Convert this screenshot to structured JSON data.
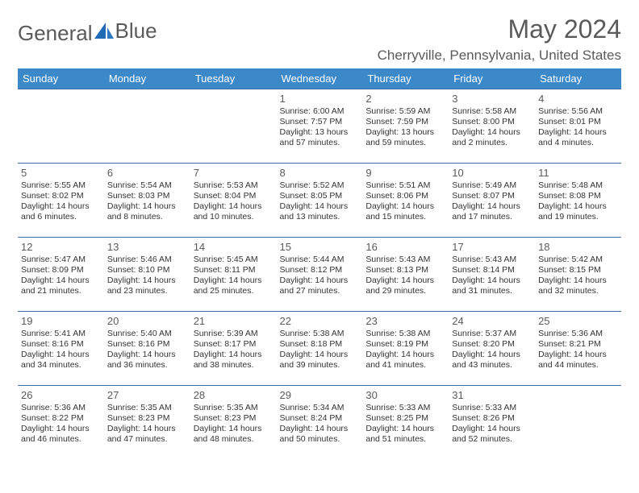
{
  "logo": {
    "text_a": "General",
    "text_b": "Blue"
  },
  "title": "May 2024",
  "location": "Cherryville, Pennsylvania, United States",
  "colors": {
    "header_bg": "#3b89c9",
    "header_text": "#ffffff",
    "row_border": "#3b6ea0",
    "text_muted": "#5a5a5a",
    "text_body": "#333333",
    "logo_accent": "#1f6bb5"
  },
  "weekdays": [
    "Sunday",
    "Monday",
    "Tuesday",
    "Wednesday",
    "Thursday",
    "Friday",
    "Saturday"
  ],
  "weeks": [
    [
      null,
      null,
      null,
      {
        "n": "1",
        "sr": "Sunrise: 6:00 AM",
        "ss": "Sunset: 7:57 PM",
        "d1": "Daylight: 13 hours",
        "d2": "and 57 minutes."
      },
      {
        "n": "2",
        "sr": "Sunrise: 5:59 AM",
        "ss": "Sunset: 7:59 PM",
        "d1": "Daylight: 13 hours",
        "d2": "and 59 minutes."
      },
      {
        "n": "3",
        "sr": "Sunrise: 5:58 AM",
        "ss": "Sunset: 8:00 PM",
        "d1": "Daylight: 14 hours",
        "d2": "and 2 minutes."
      },
      {
        "n": "4",
        "sr": "Sunrise: 5:56 AM",
        "ss": "Sunset: 8:01 PM",
        "d1": "Daylight: 14 hours",
        "d2": "and 4 minutes."
      }
    ],
    [
      {
        "n": "5",
        "sr": "Sunrise: 5:55 AM",
        "ss": "Sunset: 8:02 PM",
        "d1": "Daylight: 14 hours",
        "d2": "and 6 minutes."
      },
      {
        "n": "6",
        "sr": "Sunrise: 5:54 AM",
        "ss": "Sunset: 8:03 PM",
        "d1": "Daylight: 14 hours",
        "d2": "and 8 minutes."
      },
      {
        "n": "7",
        "sr": "Sunrise: 5:53 AM",
        "ss": "Sunset: 8:04 PM",
        "d1": "Daylight: 14 hours",
        "d2": "and 10 minutes."
      },
      {
        "n": "8",
        "sr": "Sunrise: 5:52 AM",
        "ss": "Sunset: 8:05 PM",
        "d1": "Daylight: 14 hours",
        "d2": "and 13 minutes."
      },
      {
        "n": "9",
        "sr": "Sunrise: 5:51 AM",
        "ss": "Sunset: 8:06 PM",
        "d1": "Daylight: 14 hours",
        "d2": "and 15 minutes."
      },
      {
        "n": "10",
        "sr": "Sunrise: 5:49 AM",
        "ss": "Sunset: 8:07 PM",
        "d1": "Daylight: 14 hours",
        "d2": "and 17 minutes."
      },
      {
        "n": "11",
        "sr": "Sunrise: 5:48 AM",
        "ss": "Sunset: 8:08 PM",
        "d1": "Daylight: 14 hours",
        "d2": "and 19 minutes."
      }
    ],
    [
      {
        "n": "12",
        "sr": "Sunrise: 5:47 AM",
        "ss": "Sunset: 8:09 PM",
        "d1": "Daylight: 14 hours",
        "d2": "and 21 minutes."
      },
      {
        "n": "13",
        "sr": "Sunrise: 5:46 AM",
        "ss": "Sunset: 8:10 PM",
        "d1": "Daylight: 14 hours",
        "d2": "and 23 minutes."
      },
      {
        "n": "14",
        "sr": "Sunrise: 5:45 AM",
        "ss": "Sunset: 8:11 PM",
        "d1": "Daylight: 14 hours",
        "d2": "and 25 minutes."
      },
      {
        "n": "15",
        "sr": "Sunrise: 5:44 AM",
        "ss": "Sunset: 8:12 PM",
        "d1": "Daylight: 14 hours",
        "d2": "and 27 minutes."
      },
      {
        "n": "16",
        "sr": "Sunrise: 5:43 AM",
        "ss": "Sunset: 8:13 PM",
        "d1": "Daylight: 14 hours",
        "d2": "and 29 minutes."
      },
      {
        "n": "17",
        "sr": "Sunrise: 5:43 AM",
        "ss": "Sunset: 8:14 PM",
        "d1": "Daylight: 14 hours",
        "d2": "and 31 minutes."
      },
      {
        "n": "18",
        "sr": "Sunrise: 5:42 AM",
        "ss": "Sunset: 8:15 PM",
        "d1": "Daylight: 14 hours",
        "d2": "and 32 minutes."
      }
    ],
    [
      {
        "n": "19",
        "sr": "Sunrise: 5:41 AM",
        "ss": "Sunset: 8:16 PM",
        "d1": "Daylight: 14 hours",
        "d2": "and 34 minutes."
      },
      {
        "n": "20",
        "sr": "Sunrise: 5:40 AM",
        "ss": "Sunset: 8:16 PM",
        "d1": "Daylight: 14 hours",
        "d2": "and 36 minutes."
      },
      {
        "n": "21",
        "sr": "Sunrise: 5:39 AM",
        "ss": "Sunset: 8:17 PM",
        "d1": "Daylight: 14 hours",
        "d2": "and 38 minutes."
      },
      {
        "n": "22",
        "sr": "Sunrise: 5:38 AM",
        "ss": "Sunset: 8:18 PM",
        "d1": "Daylight: 14 hours",
        "d2": "and 39 minutes."
      },
      {
        "n": "23",
        "sr": "Sunrise: 5:38 AM",
        "ss": "Sunset: 8:19 PM",
        "d1": "Daylight: 14 hours",
        "d2": "and 41 minutes."
      },
      {
        "n": "24",
        "sr": "Sunrise: 5:37 AM",
        "ss": "Sunset: 8:20 PM",
        "d1": "Daylight: 14 hours",
        "d2": "and 43 minutes."
      },
      {
        "n": "25",
        "sr": "Sunrise: 5:36 AM",
        "ss": "Sunset: 8:21 PM",
        "d1": "Daylight: 14 hours",
        "d2": "and 44 minutes."
      }
    ],
    [
      {
        "n": "26",
        "sr": "Sunrise: 5:36 AM",
        "ss": "Sunset: 8:22 PM",
        "d1": "Daylight: 14 hours",
        "d2": "and 46 minutes."
      },
      {
        "n": "27",
        "sr": "Sunrise: 5:35 AM",
        "ss": "Sunset: 8:23 PM",
        "d1": "Daylight: 14 hours",
        "d2": "and 47 minutes."
      },
      {
        "n": "28",
        "sr": "Sunrise: 5:35 AM",
        "ss": "Sunset: 8:23 PM",
        "d1": "Daylight: 14 hours",
        "d2": "and 48 minutes."
      },
      {
        "n": "29",
        "sr": "Sunrise: 5:34 AM",
        "ss": "Sunset: 8:24 PM",
        "d1": "Daylight: 14 hours",
        "d2": "and 50 minutes."
      },
      {
        "n": "30",
        "sr": "Sunrise: 5:33 AM",
        "ss": "Sunset: 8:25 PM",
        "d1": "Daylight: 14 hours",
        "d2": "and 51 minutes."
      },
      {
        "n": "31",
        "sr": "Sunrise: 5:33 AM",
        "ss": "Sunset: 8:26 PM",
        "d1": "Daylight: 14 hours",
        "d2": "and 52 minutes."
      },
      null
    ]
  ]
}
